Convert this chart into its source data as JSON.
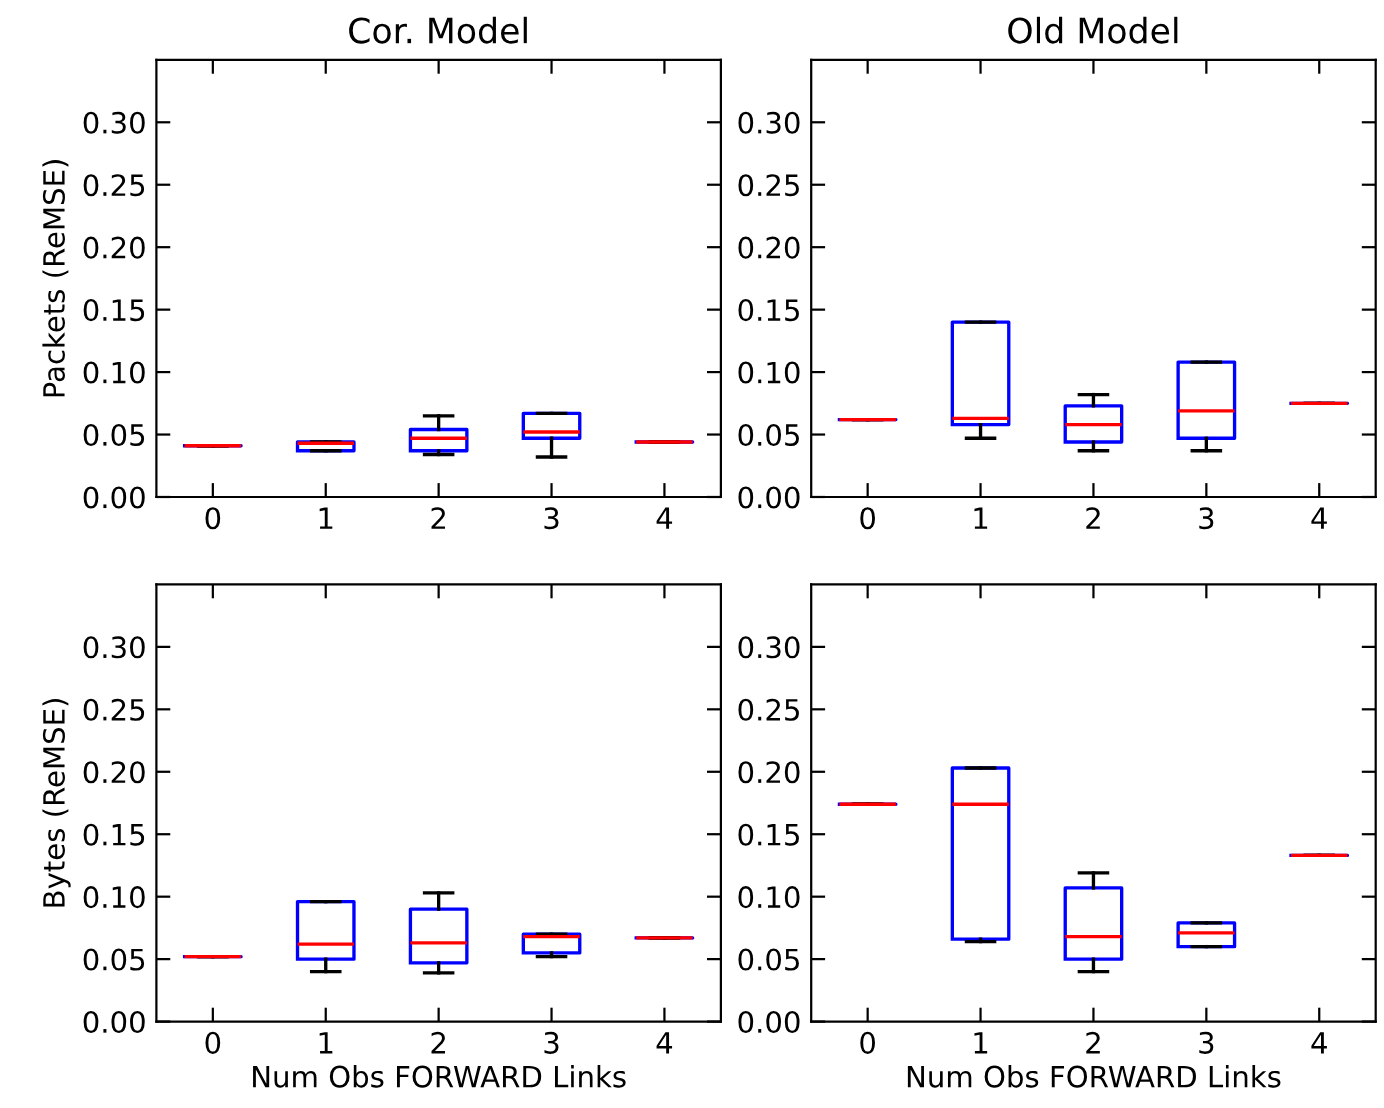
{
  "chart_data": [
    {
      "type": "box",
      "title": "Cor. Model",
      "ylabel": "Packets (ReMSE)",
      "categories": [
        "0",
        "1",
        "2",
        "3",
        "4"
      ],
      "ylim": [
        0,
        0.35
      ],
      "yticks": [
        {
          "value": 0,
          "label": "0.00"
        },
        0.05,
        {
          "value": 0.1,
          "label": "0.10"
        },
        0.15,
        {
          "value": 0.2,
          "label": "0.20"
        },
        0.25,
        {
          "value": 0.3,
          "label": "0.30"
        }
      ],
      "series": [
        {
          "color": "#0000ff",
          "boxes": [
            {
              "low": 0.041,
              "q1": 0.041,
              "median": 0.041,
              "q3": 0.041,
              "high": 0.041
            },
            {
              "low": 0.037,
              "q1": 0.037,
              "median": 0.043,
              "q3": 0.044,
              "high": 0.044
            },
            {
              "low": 0.034,
              "q1": 0.037,
              "median": 0.047,
              "q3": 0.054,
              "high": 0.065
            },
            {
              "low": 0.032,
              "q1": 0.047,
              "median": 0.052,
              "q3": 0.067,
              "high": 0.067
            },
            {
              "low": 0.044,
              "q1": 0.044,
              "median": 0.044,
              "q3": 0.044,
              "high": 0.044
            }
          ]
        }
      ]
    },
    {
      "type": "box",
      "title": "Old Model",
      "categories": [
        "0",
        "1",
        "2",
        "3",
        "4"
      ],
      "ylim": [
        0,
        0.35
      ],
      "yticks": [
        {
          "value": 0,
          "label": "0.00"
        },
        0.05,
        {
          "value": 0.1,
          "label": "0.10"
        },
        0.15,
        {
          "value": 0.2,
          "label": "0.20"
        },
        0.25,
        {
          "value": 0.3,
          "label": "0.30"
        }
      ],
      "series": [
        {
          "color": "#0000ff",
          "boxes": [
            {
              "low": 0.062,
              "q1": 0.062,
              "median": 0.062,
              "q3": 0.062,
              "high": 0.062
            },
            {
              "low": 0.047,
              "q1": 0.058,
              "median": 0.063,
              "q3": 0.14,
              "high": 0.14
            },
            {
              "low": 0.037,
              "q1": 0.044,
              "median": 0.058,
              "q3": 0.073,
              "high": 0.082
            },
            {
              "low": 0.037,
              "q1": 0.047,
              "median": 0.069,
              "q3": 0.108,
              "high": 0.108
            },
            {
              "low": 0.075,
              "q1": 0.075,
              "median": 0.075,
              "q3": 0.075,
              "high": 0.075
            }
          ]
        }
      ]
    },
    {
      "type": "box",
      "xlabel": "Num Obs FORWARD Links",
      "ylabel": "Bytes (ReMSE)",
      "categories": [
        "0",
        "1",
        "2",
        "3",
        "4"
      ],
      "ylim": [
        0,
        0.35
      ],
      "yticks": [
        {
          "value": 0,
          "label": "0.00"
        },
        0.05,
        {
          "value": 0.1,
          "label": "0.10"
        },
        0.15,
        {
          "value": 0.2,
          "label": "0.20"
        },
        0.25,
        {
          "value": 0.3,
          "label": "0.30"
        }
      ],
      "series": [
        {
          "color": "#0000ff",
          "boxes": [
            {
              "low": 0.052,
              "q1": 0.052,
              "median": 0.052,
              "q3": 0.052,
              "high": 0.052
            },
            {
              "low": 0.04,
              "q1": 0.05,
              "median": 0.062,
              "q3": 0.096,
              "high": 0.096
            },
            {
              "low": 0.039,
              "q1": 0.047,
              "median": 0.063,
              "q3": 0.09,
              "high": 0.103
            },
            {
              "low": 0.052,
              "q1": 0.055,
              "median": 0.068,
              "q3": 0.07,
              "high": 0.07
            },
            {
              "low": 0.067,
              "q1": 0.067,
              "median": 0.067,
              "q3": 0.067,
              "high": 0.067
            }
          ]
        }
      ]
    },
    {
      "type": "box",
      "xlabel": "Num Obs FORWARD Links",
      "categories": [
        "0",
        "1",
        "2",
        "3",
        "4"
      ],
      "ylim": [
        0,
        0.35
      ],
      "yticks": [
        {
          "value": 0,
          "label": "0.00"
        },
        0.05,
        {
          "value": 0.1,
          "label": "0.10"
        },
        0.15,
        {
          "value": 0.2,
          "label": "0.20"
        },
        0.25,
        {
          "value": 0.3,
          "label": "0.30"
        }
      ],
      "series": [
        {
          "color": "#0000ff",
          "boxes": [
            {
              "low": 0.174,
              "q1": 0.174,
              "median": 0.174,
              "q3": 0.174,
              "high": 0.174
            },
            {
              "low": 0.064,
              "q1": 0.066,
              "median": 0.174,
              "q3": 0.203,
              "high": 0.203
            },
            {
              "low": 0.04,
              "q1": 0.05,
              "median": 0.068,
              "q3": 0.107,
              "high": 0.119
            },
            {
              "low": 0.06,
              "q1": 0.06,
              "median": 0.071,
              "q3": 0.079,
              "high": 0.079
            },
            {
              "low": 0.133,
              "q1": 0.133,
              "median": 0.133,
              "q3": 0.133,
              "high": 0.133
            }
          ]
        }
      ]
    }
  ]
}
